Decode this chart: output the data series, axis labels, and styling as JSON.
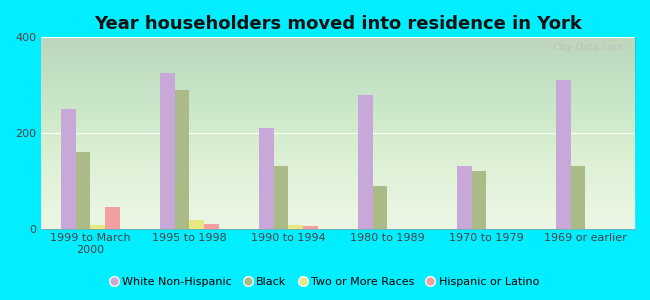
{
  "title": "Year householders moved into residence in York",
  "categories": [
    "1999 to March\n2000",
    "1995 to 1998",
    "1990 to 1994",
    "1980 to 1989",
    "1970 to 1979",
    "1969 or earlier"
  ],
  "series": {
    "White Non-Hispanic": [
      250,
      325,
      210,
      280,
      130,
      310
    ],
    "Black": [
      160,
      290,
      130,
      90,
      120,
      130
    ],
    "Two or More Races": [
      8,
      18,
      8,
      0,
      0,
      0
    ],
    "Hispanic or Latino": [
      45,
      10,
      5,
      0,
      0,
      0
    ]
  },
  "colors": {
    "White Non-Hispanic": "#c8a8d8",
    "Black": "#aabb88",
    "Two or More Races": "#e8e880",
    "Hispanic or Latino": "#f0a0a0"
  },
  "ylim": [
    0,
    400
  ],
  "yticks": [
    0,
    200,
    400
  ],
  "background_color": "#00eeff",
  "plot_facecolor": "#e8f5e0",
  "bar_width": 0.15,
  "watermark": "City-Data.com",
  "title_fontsize": 13,
  "tick_fontsize": 8,
  "legend_fontsize": 8
}
